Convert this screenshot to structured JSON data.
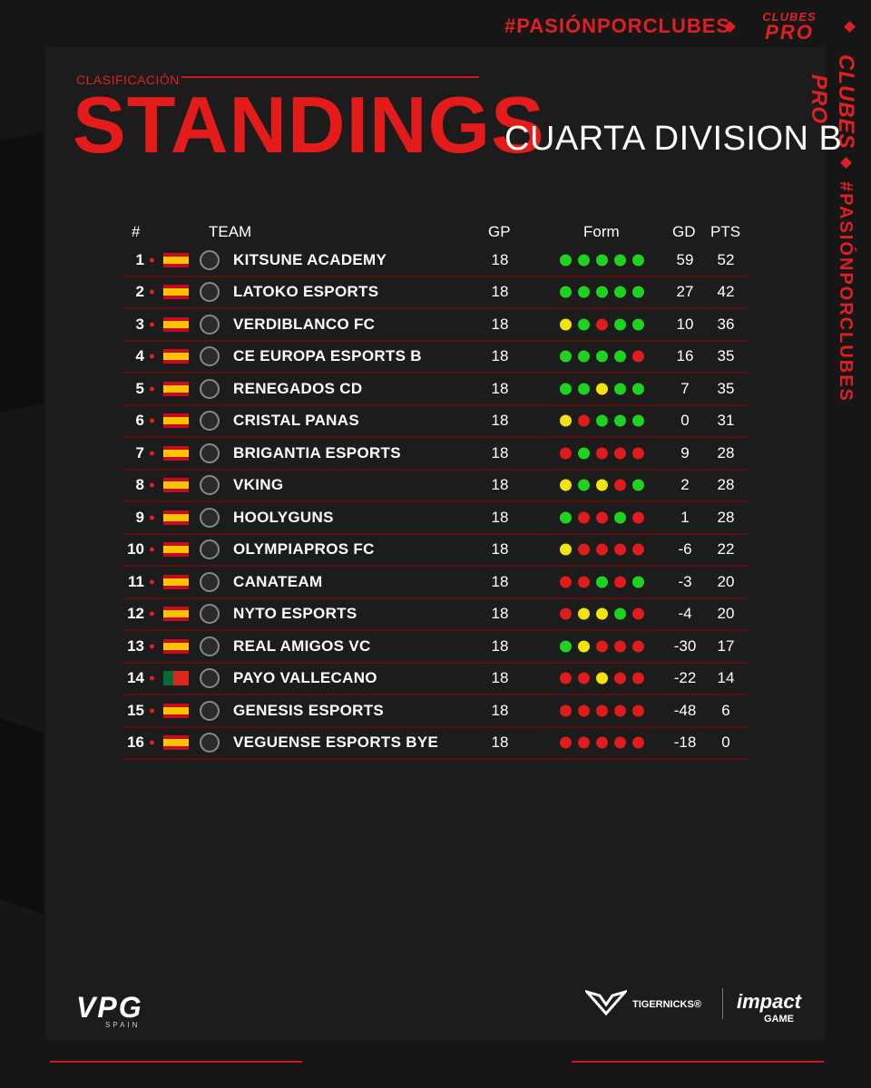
{
  "header": {
    "hashtag": "#PASIÓNPORCLUBES",
    "brand_line1": "CLUBES",
    "brand_line2": "PRO",
    "section_label": "CLASIFICACIÓN",
    "title": "STANDINGS",
    "division": "CUARTA DIVISION B",
    "side_brand": "CLUBES PRO",
    "side_hashtag": "#PASIÓNPORCLUBES"
  },
  "colors": {
    "accent_red": "#e41b1b",
    "form_green": "#1ed31e",
    "form_yellow": "#f2e40a",
    "form_red": "#e01b1b"
  },
  "table": {
    "columns": {
      "pos": "#",
      "team": "TEAM",
      "gp": "GP",
      "form": "Form",
      "gd": "GD",
      "pts": "PTS"
    },
    "rows": [
      {
        "pos": "1",
        "flag": "es",
        "crest": "kitsune-crest",
        "team": "KITSUNE ACADEMY",
        "gp": "18",
        "form": [
          "W",
          "W",
          "W",
          "W",
          "W"
        ],
        "gd": "59",
        "pts": "52"
      },
      {
        "pos": "2",
        "flag": "es",
        "crest": "latoko-crest",
        "team": "LATOKO ESPORTS",
        "gp": "18",
        "form": [
          "W",
          "W",
          "W",
          "W",
          "W"
        ],
        "gd": "27",
        "pts": "42"
      },
      {
        "pos": "3",
        "flag": "es",
        "crest": "verdiblanco-crest",
        "team": "VERDIBLANCO FC",
        "gp": "18",
        "form": [
          "D",
          "W",
          "L",
          "W",
          "W"
        ],
        "gd": "10",
        "pts": "36"
      },
      {
        "pos": "4",
        "flag": "es",
        "crest": "europa-crest",
        "team": "CE EUROPA ESPORTS B",
        "gp": "18",
        "form": [
          "W",
          "W",
          "W",
          "W",
          "L"
        ],
        "gd": "16",
        "pts": "35"
      },
      {
        "pos": "5",
        "flag": "es",
        "crest": "renegados-crest",
        "team": "RENEGADOS CD",
        "gp": "18",
        "form": [
          "W",
          "W",
          "D",
          "W",
          "W"
        ],
        "gd": "7",
        "pts": "35"
      },
      {
        "pos": "6",
        "flag": "es",
        "crest": "panas-crest",
        "team": "CRISTAL PANAS",
        "gp": "18",
        "form": [
          "D",
          "L",
          "W",
          "W",
          "W"
        ],
        "gd": "0",
        "pts": "31"
      },
      {
        "pos": "7",
        "flag": "es",
        "crest": "brigantia-crest",
        "team": "BRIGANTIA ESPORTS",
        "gp": "18",
        "form": [
          "L",
          "W",
          "L",
          "L",
          "L"
        ],
        "gd": "9",
        "pts": "28"
      },
      {
        "pos": "8",
        "flag": "es",
        "crest": "vking-crest",
        "team": "VKING",
        "gp": "18",
        "form": [
          "D",
          "W",
          "D",
          "L",
          "W"
        ],
        "gd": "2",
        "pts": "28"
      },
      {
        "pos": "9",
        "flag": "es",
        "crest": "hoolyguns-crest",
        "team": "HOOLYGUNS",
        "gp": "18",
        "form": [
          "W",
          "L",
          "L",
          "W",
          "L"
        ],
        "gd": "1",
        "pts": "28"
      },
      {
        "pos": "10",
        "flag": "es",
        "crest": "olympiapros-crest",
        "team": "OLYMPIAPROS FC",
        "gp": "18",
        "form": [
          "D",
          "L",
          "L",
          "L",
          "L"
        ],
        "gd": "-6",
        "pts": "22"
      },
      {
        "pos": "11",
        "flag": "es",
        "crest": "canateam-crest",
        "team": "CANATEAM",
        "gp": "18",
        "form": [
          "L",
          "L",
          "W",
          "L",
          "W"
        ],
        "gd": "-3",
        "pts": "20"
      },
      {
        "pos": "12",
        "flag": "es",
        "crest": "nyto-crest",
        "team": "NYTO ESPORTS",
        "gp": "18",
        "form": [
          "L",
          "D",
          "D",
          "W",
          "L"
        ],
        "gd": "-4",
        "pts": "20"
      },
      {
        "pos": "13",
        "flag": "es",
        "crest": "realamigos-crest",
        "team": "REAL AMIGOS VC",
        "gp": "18",
        "form": [
          "W",
          "D",
          "L",
          "L",
          "L"
        ],
        "gd": "-30",
        "pts": "17"
      },
      {
        "pos": "14",
        "flag": "pt",
        "crest": "payo-crest",
        "team": "PAYO VALLECANO",
        "gp": "18",
        "form": [
          "L",
          "L",
          "D",
          "L",
          "L"
        ],
        "gd": "-22",
        "pts": "14"
      },
      {
        "pos": "15",
        "flag": "es",
        "crest": "genesis-crest",
        "team": "GENESIS ESPORTS",
        "gp": "18",
        "form": [
          "L",
          "L",
          "L",
          "L",
          "L"
        ],
        "gd": "-48",
        "pts": "6"
      },
      {
        "pos": "16",
        "flag": "es",
        "crest": "veguense-crest",
        "team": "VEGUENSE ESPORTS BYE",
        "gp": "18",
        "form": [
          "L",
          "L",
          "L",
          "L",
          "L"
        ],
        "gd": "-18",
        "pts": "0"
      }
    ]
  },
  "footer": {
    "vpg": "VPG",
    "vpg_sub": "SPAIN",
    "sponsor1": "TIGERNICKS®",
    "sponsor2": "impact",
    "sponsor2_sub": "GAME"
  }
}
